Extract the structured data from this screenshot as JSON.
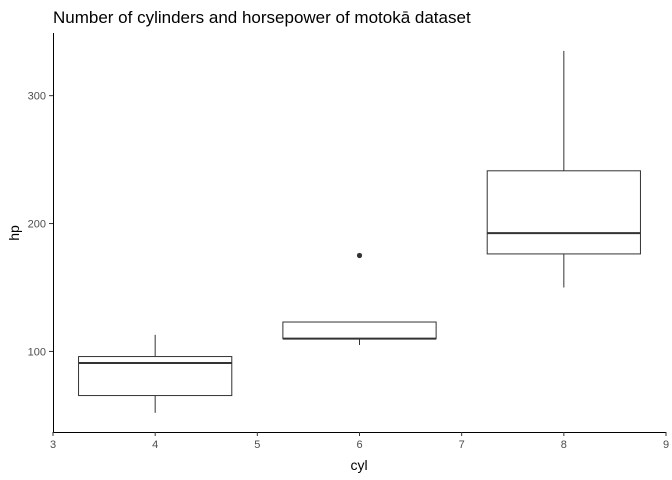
{
  "chart_data": {
    "type": "boxplot",
    "title": "Number of cylinders and horsepower of motokā dataset",
    "xlabel": "cyl",
    "ylabel": "hp",
    "xlim": [
      3,
      9
    ],
    "ylim": [
      37,
      349
    ],
    "x_ticks": [
      "3",
      "4",
      "5",
      "6",
      "7",
      "8",
      "9"
    ],
    "y_ticks": [
      "100",
      "200",
      "300"
    ],
    "grid": false,
    "series": [
      {
        "x": 4,
        "min": 52,
        "q1": 65.5,
        "median": 91,
        "q3": 96,
        "max": 113,
        "outliers": []
      },
      {
        "x": 6,
        "min": 105,
        "q1": 110,
        "median": 110,
        "q3": 123,
        "max": 123,
        "outliers": [
          175
        ]
      },
      {
        "x": 8,
        "min": 150,
        "q1": 176.25,
        "median": 192.5,
        "q3": 241.25,
        "max": 335,
        "outliers": []
      }
    ]
  }
}
